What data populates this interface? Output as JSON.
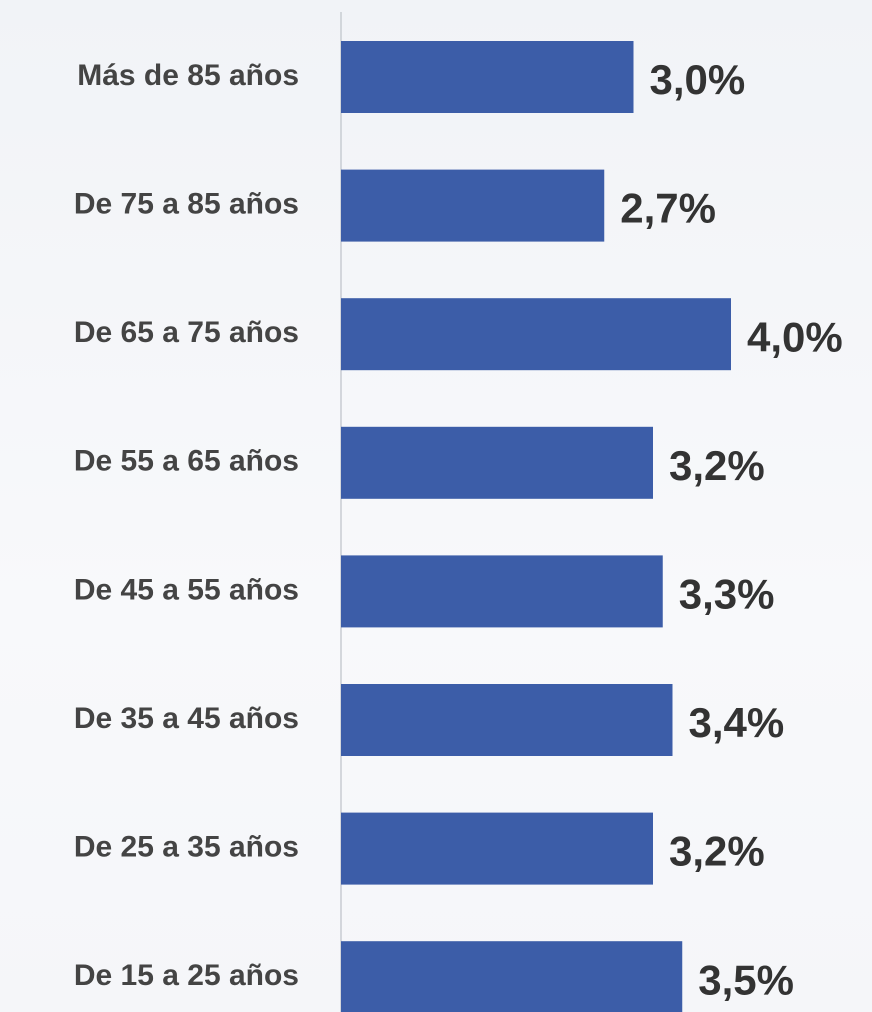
{
  "chart_data": {
    "type": "bar",
    "orientation": "horizontal",
    "categories": [
      "Más de 85 años",
      "De 75 a 85 años",
      "De 65 a 75 años",
      "De 55 a 65 años",
      "De 45 a 55 años",
      "De 35 a 45 años",
      "De 25 a 35 años",
      "De 15 a 25 años"
    ],
    "values": [
      3.0,
      2.7,
      4.0,
      3.2,
      3.3,
      3.4,
      3.2,
      3.5
    ],
    "value_labels": [
      "3,0%",
      "2,7%",
      "4,0%",
      "3,2%",
      "3,3%",
      "3,4%",
      "3,2%",
      "3,5%"
    ],
    "color": "#3c5da8"
  }
}
